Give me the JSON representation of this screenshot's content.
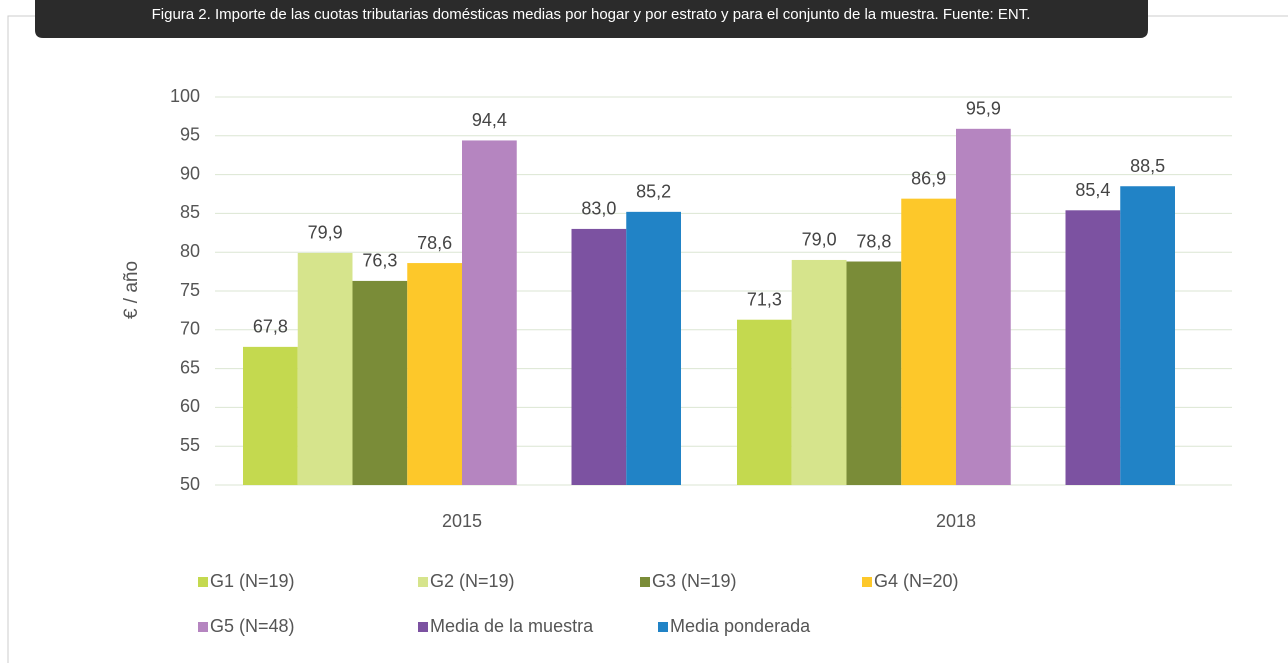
{
  "chart_data": {
    "type": "bar",
    "caption": "Figura 2. Importe de las cuotas tributarias domésticas medias por hogar y por estrato y para el conjunto de la muestra. Fuente: ENT.",
    "y_label": "€ / año",
    "categories": [
      "2015",
      "2018"
    ],
    "series": [
      {
        "name": "G1 (N=19)",
        "color": "#c4d94f",
        "values": [
          67.8,
          71.3
        ],
        "value_labels": [
          "67,8",
          "71,3"
        ]
      },
      {
        "name": "G2 (N=19)",
        "color": "#d6e48c",
        "values": [
          79.9,
          79.0
        ],
        "value_labels": [
          "79,9",
          "79,0"
        ]
      },
      {
        "name": "G3 (N=19)",
        "color": "#7a8c38",
        "values": [
          76.3,
          78.8
        ],
        "value_labels": [
          "76,3",
          "78,8"
        ]
      },
      {
        "name": "G4 (N=20)",
        "color": "#fdc82a",
        "values": [
          78.6,
          86.9
        ],
        "value_labels": [
          "78,6",
          "86,9"
        ]
      },
      {
        "name": "G5 (N=48)",
        "color": "#b585c0",
        "values": [
          94.4,
          95.9
        ],
        "value_labels": [
          "94,4",
          "95,9"
        ]
      },
      {
        "name": "Media de la muestra",
        "color": "#7c52a1",
        "values": [
          83.0,
          85.4
        ],
        "value_labels": [
          "83,0",
          "85,4"
        ]
      },
      {
        "name": "Media ponderada",
        "color": "#2183c6",
        "values": [
          85.2,
          88.5
        ],
        "value_labels": [
          "85,2",
          "88,5"
        ]
      }
    ],
    "ylim": [
      50,
      100
    ],
    "yticks": [
      50,
      55,
      60,
      65,
      70,
      75,
      80,
      85,
      90,
      95,
      100
    ],
    "grid": true
  }
}
